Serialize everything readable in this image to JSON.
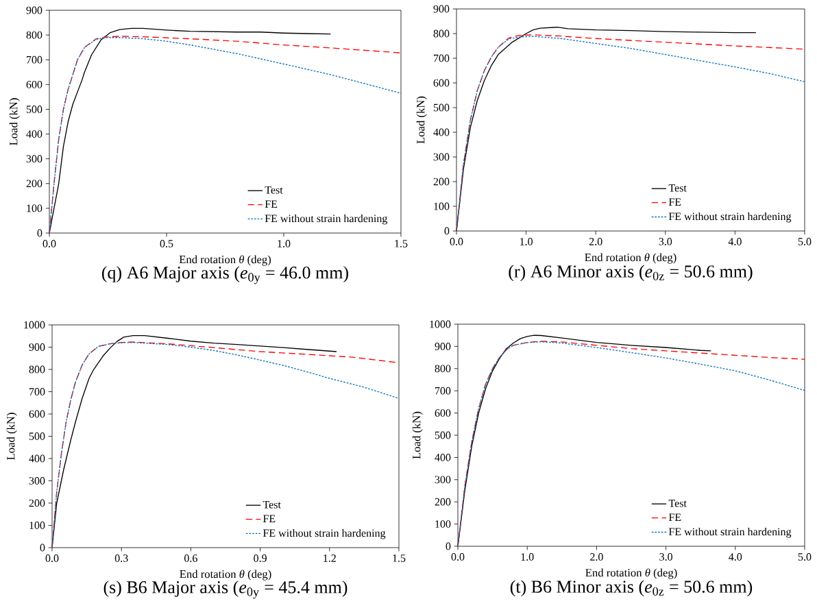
{
  "chart_data": [
    {
      "type": "line",
      "title": "(q) A6 Major axis (*e*$_{0y}$ = 46.0 mm)",
      "xlabel": "End rotation *θ* (deg)",
      "ylabel": "Load (kN)",
      "xlim": [
        0,
        1.5
      ],
      "ylim": [
        0,
        900
      ],
      "xticks": [
        {
          "value": 0,
          "label": "0.0"
        },
        0.5,
        {
          "value": 1,
          "label": "1.0"
        },
        1.5
      ],
      "yticks": [
        0,
        100,
        200,
        300,
        400,
        500,
        600,
        700,
        800,
        900
      ],
      "legend": "bottom right",
      "marker": "none",
      "series": [
        {
          "name": "Test",
          "color": "#000000",
          "line_style": "solid",
          "x": [
            0,
            0.02,
            0.04,
            0.06,
            0.08,
            0.1,
            0.14,
            0.15,
            0.18,
            0.22,
            0.26,
            0.3,
            0.35,
            0.4,
            0.5,
            0.6,
            0.8,
            0.9,
            1.0,
            1.1,
            1.2
          ],
          "values": [
            0,
            100,
            200,
            350,
            450,
            520,
            620,
            650,
            720,
            780,
            810,
            822,
            827,
            827,
            820,
            815,
            812,
            812,
            808,
            806,
            804
          ]
        },
        {
          "name": "FE",
          "color": "#ff0000",
          "line_style": "dashed",
          "x": [
            0,
            0.02,
            0.04,
            0.06,
            0.08,
            0.1,
            0.12,
            0.15,
            0.2,
            0.25,
            0.3,
            0.4,
            0.6,
            0.8,
            1.0,
            1.2,
            1.5
          ],
          "values": [
            0,
            200,
            380,
            500,
            580,
            640,
            700,
            750,
            785,
            793,
            795,
            793,
            785,
            775,
            760,
            748,
            728
          ]
        },
        {
          "name": "FE without strain hardening",
          "color": "#0070c0",
          "line_style": "dotted",
          "x": [
            0,
            0.02,
            0.04,
            0.06,
            0.08,
            0.1,
            0.12,
            0.15,
            0.2,
            0.25,
            0.3,
            0.4,
            0.5,
            0.6,
            0.8,
            1.0,
            1.2,
            1.4,
            1.5
          ],
          "values": [
            0,
            200,
            380,
            500,
            580,
            640,
            700,
            750,
            783,
            790,
            790,
            785,
            775,
            760,
            725,
            683,
            640,
            590,
            565
          ]
        }
      ]
    },
    {
      "type": "line",
      "title": "(r) A6 Minor axis (*e*$_{0z}$ = 50.6 mm)",
      "xlabel": "End rotation *θ* (deg)",
      "ylabel": "Load (kN)",
      "xlim": [
        0,
        5
      ],
      "ylim": [
        0,
        900
      ],
      "xticks": [
        {
          "value": 0,
          "label": "0.0"
        },
        {
          "value": 1,
          "label": "1.0"
        },
        {
          "value": 2,
          "label": "2.0"
        },
        {
          "value": 3,
          "label": "3.0"
        },
        {
          "value": 4,
          "label": "4.0"
        },
        {
          "value": 5,
          "label": "5.0"
        }
      ],
      "yticks": [
        0,
        100,
        200,
        300,
        400,
        500,
        600,
        700,
        800,
        900
      ],
      "legend": "bottom right",
      "marker": "none",
      "series": [
        {
          "name": "Test",
          "color": "#000000",
          "line_style": "solid",
          "x": [
            0,
            0.1,
            0.2,
            0.3,
            0.4,
            0.5,
            0.6,
            0.8,
            1.0,
            1.1,
            1.2,
            1.4,
            1.45,
            1.6,
            2.0,
            2.5,
            3.0,
            3.5,
            4.0,
            4.3
          ],
          "values": [
            0,
            250,
            420,
            530,
            610,
            670,
            715,
            765,
            800,
            815,
            822,
            825,
            826,
            820,
            815,
            812,
            808,
            806,
            804,
            804
          ]
        },
        {
          "name": "FE",
          "color": "#ff0000",
          "line_style": "dashed",
          "x": [
            0,
            0.1,
            0.2,
            0.3,
            0.4,
            0.5,
            0.6,
            0.75,
            0.9,
            1.1,
            1.5,
            2.0,
            3.0,
            4.0,
            5.0
          ],
          "values": [
            0,
            270,
            450,
            570,
            650,
            705,
            745,
            782,
            793,
            795,
            790,
            780,
            765,
            750,
            737
          ]
        },
        {
          "name": "FE without strain hardening",
          "color": "#0070c0",
          "line_style": "dotted",
          "x": [
            0,
            0.1,
            0.2,
            0.3,
            0.4,
            0.5,
            0.6,
            0.75,
            0.9,
            1.1,
            1.5,
            2.0,
            2.5,
            3.0,
            3.5,
            4.0,
            4.5,
            5.0
          ],
          "values": [
            0,
            270,
            450,
            570,
            650,
            705,
            745,
            778,
            786,
            789,
            780,
            760,
            740,
            715,
            690,
            665,
            638,
            605
          ]
        }
      ]
    },
    {
      "type": "line",
      "title": "(s) B6 Major axis (*e*$_{0y}$ = 45.4 mm)",
      "xlabel": "End rotation *θ* (deg)",
      "ylabel": "Load (kN)",
      "xlim": [
        0,
        1.5
      ],
      "ylim": [
        0,
        1000
      ],
      "xticks": [
        {
          "value": 0,
          "label": "0.0"
        },
        0.3,
        0.6,
        0.9,
        1.2,
        1.5
      ],
      "yticks": [
        0,
        100,
        200,
        300,
        400,
        500,
        600,
        700,
        800,
        900,
        1000
      ],
      "legend": "bottom right",
      "marker": "none",
      "series": [
        {
          "name": "Test",
          "color": "#000000",
          "line_style": "solid",
          "x": [
            0,
            0.02,
            0.05,
            0.08,
            0.1,
            0.13,
            0.16,
            0.18,
            0.22,
            0.25,
            0.28,
            0.31,
            0.35,
            0.4,
            0.5,
            0.6,
            0.7,
            0.8,
            0.9,
            1.0,
            1.1,
            1.23
          ],
          "values": [
            0,
            200,
            350,
            480,
            560,
            670,
            760,
            800,
            860,
            895,
            925,
            945,
            952,
            952,
            940,
            927,
            918,
            912,
            905,
            898,
            890,
            880
          ]
        },
        {
          "name": "FE",
          "color": "#ff0000",
          "line_style": "dashed",
          "x": [
            0,
            0.02,
            0.04,
            0.06,
            0.08,
            0.1,
            0.13,
            0.16,
            0.2,
            0.25,
            0.3,
            0.35,
            0.5,
            0.7,
            0.9,
            1.1,
            1.3,
            1.5
          ],
          "values": [
            0,
            250,
            420,
            560,
            660,
            740,
            820,
            870,
            903,
            915,
            921,
            923,
            915,
            898,
            880,
            868,
            855,
            830
          ]
        },
        {
          "name": "FE without strain hardening",
          "color": "#0070c0",
          "line_style": "dotted",
          "x": [
            0,
            0.02,
            0.04,
            0.06,
            0.08,
            0.1,
            0.13,
            0.16,
            0.2,
            0.25,
            0.3,
            0.35,
            0.5,
            0.6,
            0.7,
            0.8,
            0.9,
            1.0,
            1.1,
            1.2,
            1.35,
            1.5
          ],
          "values": [
            0,
            250,
            420,
            560,
            660,
            740,
            820,
            870,
            903,
            915,
            920,
            921,
            912,
            900,
            885,
            865,
            842,
            818,
            790,
            760,
            720,
            670
          ]
        }
      ]
    },
    {
      "type": "line",
      "title": "(t) B6 Minor axis (*e*$_{0z}$ = 50.6 mm)",
      "xlabel": "End rotation *θ* (deg)",
      "ylabel": "Load (kN)",
      "xlim": [
        0,
        5
      ],
      "ylim": [
        0,
        1000
      ],
      "xticks": [
        {
          "value": 0,
          "label": "0.0"
        },
        {
          "value": 1,
          "label": "1.0"
        },
        {
          "value": 2,
          "label": "2.0"
        },
        {
          "value": 3,
          "label": "3.0"
        },
        {
          "value": 4,
          "label": "4.0"
        },
        {
          "value": 5,
          "label": "5.0"
        }
      ],
      "yticks": [
        0,
        100,
        200,
        300,
        400,
        500,
        600,
        700,
        800,
        900,
        1000
      ],
      "legend": "bottom right",
      "marker": "none",
      "series": [
        {
          "name": "Test",
          "color": "#000000",
          "line_style": "solid",
          "x": [
            0,
            0.1,
            0.2,
            0.3,
            0.4,
            0.5,
            0.6,
            0.7,
            0.8,
            0.9,
            1.0,
            1.1,
            1.2,
            1.5,
            2.0,
            2.3,
            2.5,
            3.0,
            3.5,
            3.65
          ],
          "values": [
            0,
            250,
            450,
            600,
            710,
            790,
            845,
            890,
            915,
            935,
            945,
            950,
            949,
            938,
            918,
            910,
            905,
            895,
            882,
            880
          ]
        },
        {
          "name": "FE",
          "color": "#ff0000",
          "line_style": "dashed",
          "x": [
            0,
            0.1,
            0.2,
            0.3,
            0.4,
            0.5,
            0.6,
            0.7,
            0.8,
            1.0,
            1.2,
            1.5,
            2.0,
            2.5,
            3.0,
            3.5,
            4.0,
            4.5,
            5.0
          ],
          "values": [
            0,
            270,
            470,
            620,
            730,
            800,
            850,
            885,
            905,
            918,
            923,
            920,
            905,
            890,
            880,
            870,
            860,
            850,
            842
          ]
        },
        {
          "name": "FE without strain hardening",
          "color": "#0070c0",
          "line_style": "dotted",
          "x": [
            0,
            0.1,
            0.2,
            0.3,
            0.4,
            0.5,
            0.6,
            0.7,
            0.8,
            1.0,
            1.2,
            1.5,
            2.0,
            2.5,
            3.0,
            3.5,
            4.0,
            4.5,
            5.0
          ],
          "values": [
            0,
            270,
            470,
            620,
            730,
            800,
            850,
            885,
            905,
            917,
            921,
            915,
            895,
            872,
            848,
            820,
            790,
            748,
            702
          ]
        }
      ]
    }
  ]
}
